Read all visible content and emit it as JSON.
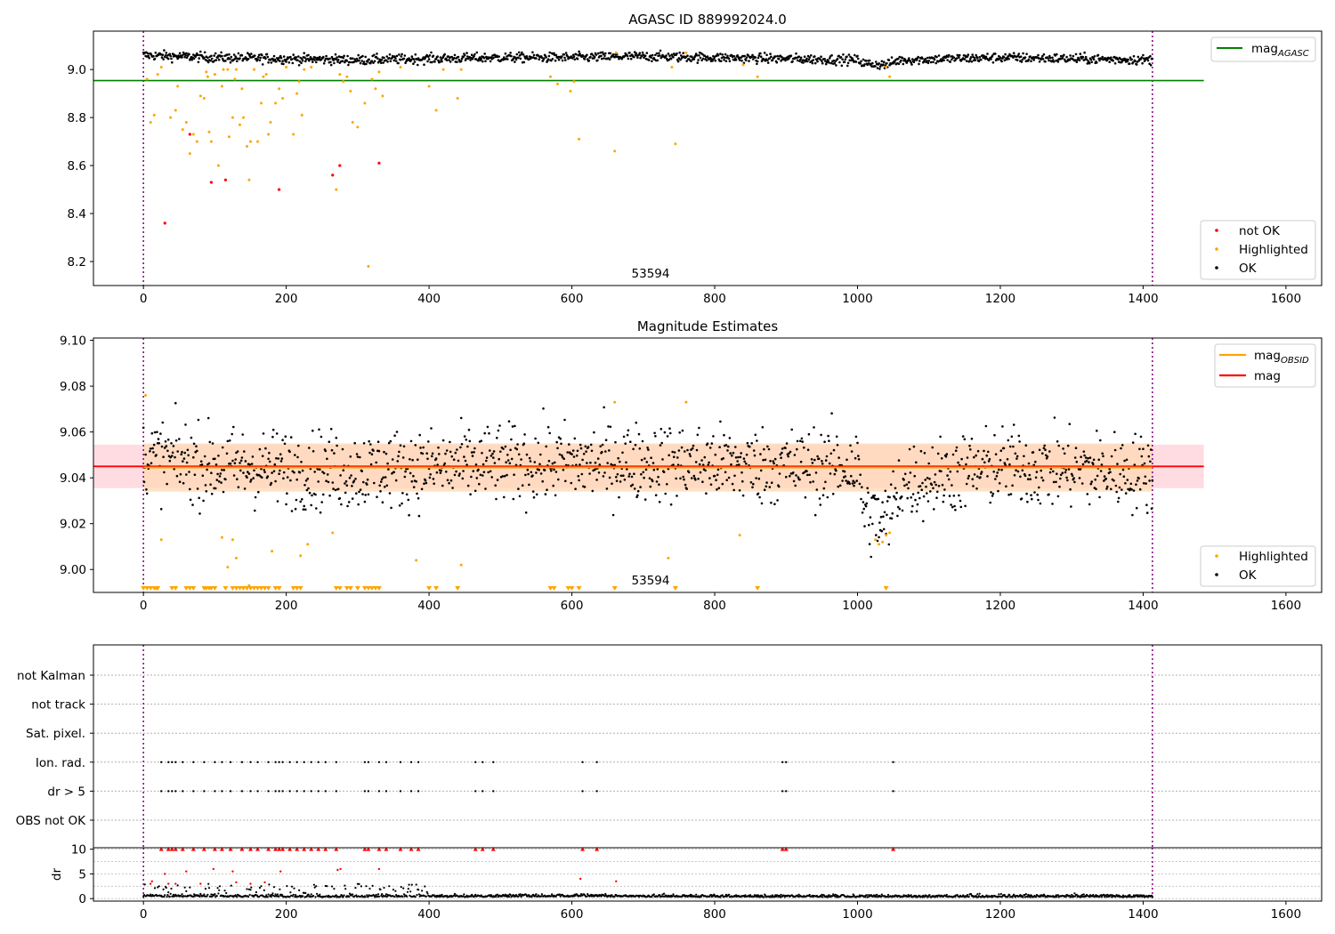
{
  "figure": {
    "panel1_title": "AGASC ID 889992024.0",
    "panel2_title": "Magnitude Estimates",
    "obsid_label": "53594"
  },
  "colors": {
    "ok": "#000000",
    "highlighted": "#ffa500",
    "not_ok": "#ff0000",
    "mag_agasc": "#008000",
    "mag": "#ff0000",
    "mag_obsid": "#ffa500",
    "obs_boundary": "#800080",
    "mag_band": "#ffc0cb",
    "obsid_band": "#ffdab9"
  },
  "chart_data": [
    {
      "id": "agasc-magnitude",
      "type": "scatter",
      "title": "AGASC ID 889992024.0",
      "xlim": [
        -70,
        1650
      ],
      "ylim": [
        8.1,
        9.16
      ],
      "xticks": [
        "0",
        "200",
        "400",
        "600",
        "800",
        "1000",
        "1200",
        "1400",
        "1600"
      ],
      "yticks": [
        "8.2",
        "8.4",
        "8.6",
        "8.8",
        "9.0"
      ],
      "obs_boundaries": [
        0,
        1413
      ],
      "mag_agasc": 8.954,
      "legend_lines": [
        {
          "name": "mag",
          "subscript": "AGASC"
        }
      ],
      "legend_points": [
        {
          "name": "not OK",
          "color": "#ff0000"
        },
        {
          "name": "Highlighted",
          "color": "#ffa500"
        },
        {
          "name": "OK",
          "color": "#000000"
        }
      ],
      "ok_trend": [
        [
          0,
          9.06
        ],
        [
          100,
          9.05
        ],
        [
          200,
          9.045
        ],
        [
          300,
          9.04
        ],
        [
          400,
          9.045
        ],
        [
          500,
          9.05
        ],
        [
          600,
          9.05
        ],
        [
          700,
          9.055
        ],
        [
          800,
          9.05
        ],
        [
          900,
          9.045
        ],
        [
          1000,
          9.04
        ],
        [
          1010,
          9.025
        ],
        [
          1040,
          9.02
        ],
        [
          1060,
          9.04
        ],
        [
          1200,
          9.05
        ],
        [
          1413,
          9.04
        ]
      ],
      "highlighted_points": [
        [
          5,
          8.96
        ],
        [
          10,
          8.78
        ],
        [
          15,
          8.81
        ],
        [
          20,
          8.98
        ],
        [
          25,
          9.01
        ],
        [
          30,
          8.36
        ],
        [
          38,
          8.8
        ],
        [
          45,
          8.83
        ],
        [
          48,
          8.93
        ],
        [
          55,
          8.75
        ],
        [
          60,
          8.78
        ],
        [
          65,
          8.65
        ],
        [
          70,
          8.73
        ],
        [
          75,
          8.7
        ],
        [
          80,
          8.89
        ],
        [
          85,
          8.88
        ],
        [
          88,
          8.99
        ],
        [
          90,
          8.97
        ],
        [
          92,
          8.74
        ],
        [
          95,
          8.7
        ],
        [
          100,
          8.98
        ],
        [
          105,
          8.6
        ],
        [
          110,
          8.93
        ],
        [
          112,
          9.0
        ],
        [
          118,
          9.0
        ],
        [
          120,
          8.72
        ],
        [
          125,
          8.8
        ],
        [
          128,
          8.96
        ],
        [
          130,
          9.0
        ],
        [
          135,
          8.77
        ],
        [
          138,
          8.92
        ],
        [
          140,
          8.8
        ],
        [
          145,
          8.68
        ],
        [
          148,
          8.54
        ],
        [
          150,
          8.7
        ],
        [
          155,
          9.0
        ],
        [
          160,
          8.7
        ],
        [
          165,
          8.86
        ],
        [
          168,
          8.97
        ],
        [
          172,
          8.98
        ],
        [
          175,
          8.73
        ],
        [
          178,
          8.78
        ],
        [
          185,
          8.86
        ],
        [
          190,
          8.92
        ],
        [
          195,
          8.88
        ],
        [
          200,
          9.01
        ],
        [
          210,
          8.73
        ],
        [
          215,
          8.9
        ],
        [
          218,
          8.95
        ],
        [
          222,
          8.81
        ],
        [
          225,
          9.0
        ],
        [
          235,
          9.01
        ],
        [
          270,
          8.5
        ],
        [
          275,
          8.98
        ],
        [
          280,
          8.95
        ],
        [
          285,
          8.97
        ],
        [
          290,
          8.91
        ],
        [
          293,
          8.78
        ],
        [
          300,
          8.76
        ],
        [
          310,
          8.86
        ],
        [
          315,
          8.18
        ],
        [
          320,
          8.96
        ],
        [
          325,
          8.92
        ],
        [
          330,
          8.99
        ],
        [
          335,
          8.89
        ],
        [
          360,
          9.01
        ],
        [
          400,
          8.93
        ],
        [
          410,
          8.83
        ],
        [
          420,
          9.0
        ],
        [
          440,
          8.88
        ],
        [
          445,
          9.0
        ],
        [
          570,
          8.97
        ],
        [
          580,
          8.94
        ],
        [
          598,
          8.91
        ],
        [
          603,
          8.95
        ],
        [
          610,
          8.71
        ],
        [
          660,
          8.66
        ],
        [
          662,
          9.07
        ],
        [
          740,
          9.01
        ],
        [
          745,
          8.69
        ],
        [
          760,
          9.07
        ],
        [
          840,
          9.02
        ],
        [
          860,
          8.97
        ],
        [
          1040,
          9.01
        ],
        [
          1045,
          8.97
        ]
      ],
      "not_ok_points": [
        [
          30,
          8.36
        ],
        [
          65,
          8.73
        ],
        [
          95,
          8.53
        ],
        [
          115,
          8.54
        ],
        [
          190,
          8.5
        ],
        [
          265,
          8.56
        ],
        [
          275,
          8.6
        ],
        [
          330,
          8.61
        ]
      ]
    },
    {
      "id": "magnitude-estimates",
      "type": "scatter",
      "title": "Magnitude Estimates",
      "xlim": [
        -70,
        1650
      ],
      "ylim": [
        8.99,
        9.101
      ],
      "xticks": [
        "0",
        "200",
        "400",
        "600",
        "800",
        "1000",
        "1200",
        "1400",
        "1600"
      ],
      "yticks": [
        "9.00",
        "9.02",
        "9.04",
        "9.06",
        "9.08",
        "9.10"
      ],
      "obs_boundaries": [
        0,
        1413
      ],
      "mag": 9.045,
      "mag_band": [
        9.0355,
        9.0545
      ],
      "mag_obsid": 9.0445,
      "mag_obsid_band": [
        9.034,
        9.055
      ],
      "legend_lines": [
        {
          "name": "mag",
          "subscript": "OBSID"
        },
        {
          "name": "mag",
          "subscript": ""
        }
      ],
      "legend_points": [
        {
          "name": "Highlighted",
          "color": "#ffa500"
        },
        {
          "name": "OK",
          "color": "#000000"
        }
      ],
      "ok_trend": [
        [
          0,
          9.05
        ],
        [
          100,
          9.045
        ],
        [
          300,
          9.043
        ],
        [
          500,
          9.046
        ],
        [
          700,
          9.047
        ],
        [
          900,
          9.045
        ],
        [
          1000,
          9.045
        ],
        [
          1010,
          9.025
        ],
        [
          1040,
          9.02
        ],
        [
          1060,
          9.038
        ],
        [
          1200,
          9.045
        ],
        [
          1413,
          9.042
        ]
      ],
      "highlighted_points": [
        [
          3,
          9.076
        ],
        [
          25,
          9.013
        ],
        [
          110,
          9.014
        ],
        [
          118,
          9.001
        ],
        [
          125,
          9.013
        ],
        [
          130,
          9.005
        ],
        [
          148,
          8.993
        ],
        [
          180,
          9.008
        ],
        [
          220,
          9.006
        ],
        [
          230,
          9.011
        ],
        [
          265,
          9.016
        ],
        [
          382,
          9.004
        ],
        [
          445,
          9.002
        ],
        [
          660,
          9.073
        ],
        [
          735,
          9.005
        ],
        [
          760,
          9.073
        ],
        [
          835,
          9.015
        ],
        [
          1025,
          9.013
        ],
        [
          1030,
          9.011
        ],
        [
          1035,
          9.012
        ],
        [
          1040,
          9.015
        ],
        [
          1045,
          9.016
        ]
      ],
      "offscale_x": [
        0,
        5,
        10,
        15,
        18,
        20,
        40,
        45,
        60,
        65,
        70,
        85,
        88,
        92,
        95,
        100,
        115,
        125,
        130,
        135,
        140,
        145,
        150,
        155,
        160,
        165,
        170,
        175,
        185,
        190,
        210,
        215,
        220,
        270,
        275,
        285,
        290,
        300,
        310,
        315,
        320,
        325,
        330,
        400,
        410,
        440,
        570,
        575,
        595,
        600,
        610,
        660,
        745,
        860,
        1040
      ]
    },
    {
      "id": "flags",
      "type": "scatter",
      "xlim": [
        -70,
        1650
      ],
      "categories": [
        "not Kalman",
        "not track",
        "Sat. pixel.",
        "Ion. rad.",
        "dr > 5",
        "OBS not OK"
      ],
      "obs_boundaries": [
        0,
        1413
      ],
      "ion_rad_x": [
        25,
        35,
        40,
        45,
        55,
        70,
        85,
        100,
        110,
        122,
        138,
        150,
        160,
        175,
        185,
        190,
        195,
        205,
        215,
        225,
        235,
        245,
        255,
        270,
        310,
        315,
        330,
        340,
        360,
        375,
        385,
        465,
        475,
        490,
        615,
        635,
        895,
        900,
        1050
      ],
      "dr_gt5_x": [
        25,
        35,
        40,
        45,
        55,
        70,
        85,
        100,
        110,
        122,
        138,
        150,
        160,
        175,
        185,
        190,
        195,
        205,
        215,
        225,
        235,
        245,
        255,
        270,
        310,
        315,
        330,
        340,
        360,
        375,
        385,
        465,
        475,
        490,
        615,
        635,
        895,
        900,
        1050
      ]
    },
    {
      "id": "dr",
      "type": "scatter",
      "ylabel": "dr",
      "xlim": [
        -70,
        1650
      ],
      "ylim": [
        -0.5,
        10.3
      ],
      "xticks": [
        "0",
        "200",
        "400",
        "600",
        "800",
        "1000",
        "1200",
        "1400",
        "1600"
      ],
      "yticks": [
        "0",
        "5",
        "10"
      ],
      "obs_boundaries": [
        0,
        1413
      ],
      "clipped_x": [
        25,
        35,
        40,
        45,
        55,
        70,
        85,
        100,
        110,
        122,
        138,
        150,
        160,
        175,
        185,
        190,
        195,
        205,
        215,
        225,
        235,
        245,
        255,
        270,
        310,
        315,
        330,
        340,
        360,
        375,
        385,
        465,
        475,
        490,
        615,
        635,
        895,
        900,
        1050
      ],
      "red_points": [
        [
          10,
          3
        ],
        [
          12,
          3.5
        ],
        [
          30,
          5
        ],
        [
          35,
          3
        ],
        [
          45,
          3
        ],
        [
          60,
          5.5
        ],
        [
          80,
          3
        ],
        [
          98,
          6
        ],
        [
          125,
          5.5
        ],
        [
          130,
          3.3
        ],
        [
          150,
          3
        ],
        [
          170,
          3.3
        ],
        [
          192,
          5.5
        ],
        [
          272,
          5.8
        ],
        [
          276,
          6
        ],
        [
          330,
          6
        ],
        [
          612,
          4
        ],
        [
          662,
          3.5
        ]
      ],
      "ok_trend": [
        [
          0,
          0.4
        ],
        [
          200,
          0.3
        ],
        [
          400,
          0.3
        ],
        [
          600,
          0.4
        ],
        [
          800,
          0.3
        ],
        [
          1000,
          0.3
        ],
        [
          1200,
          0.3
        ],
        [
          1413,
          0.3
        ]
      ],
      "scatter_range_x": [
        0,
        400
      ]
    }
  ]
}
